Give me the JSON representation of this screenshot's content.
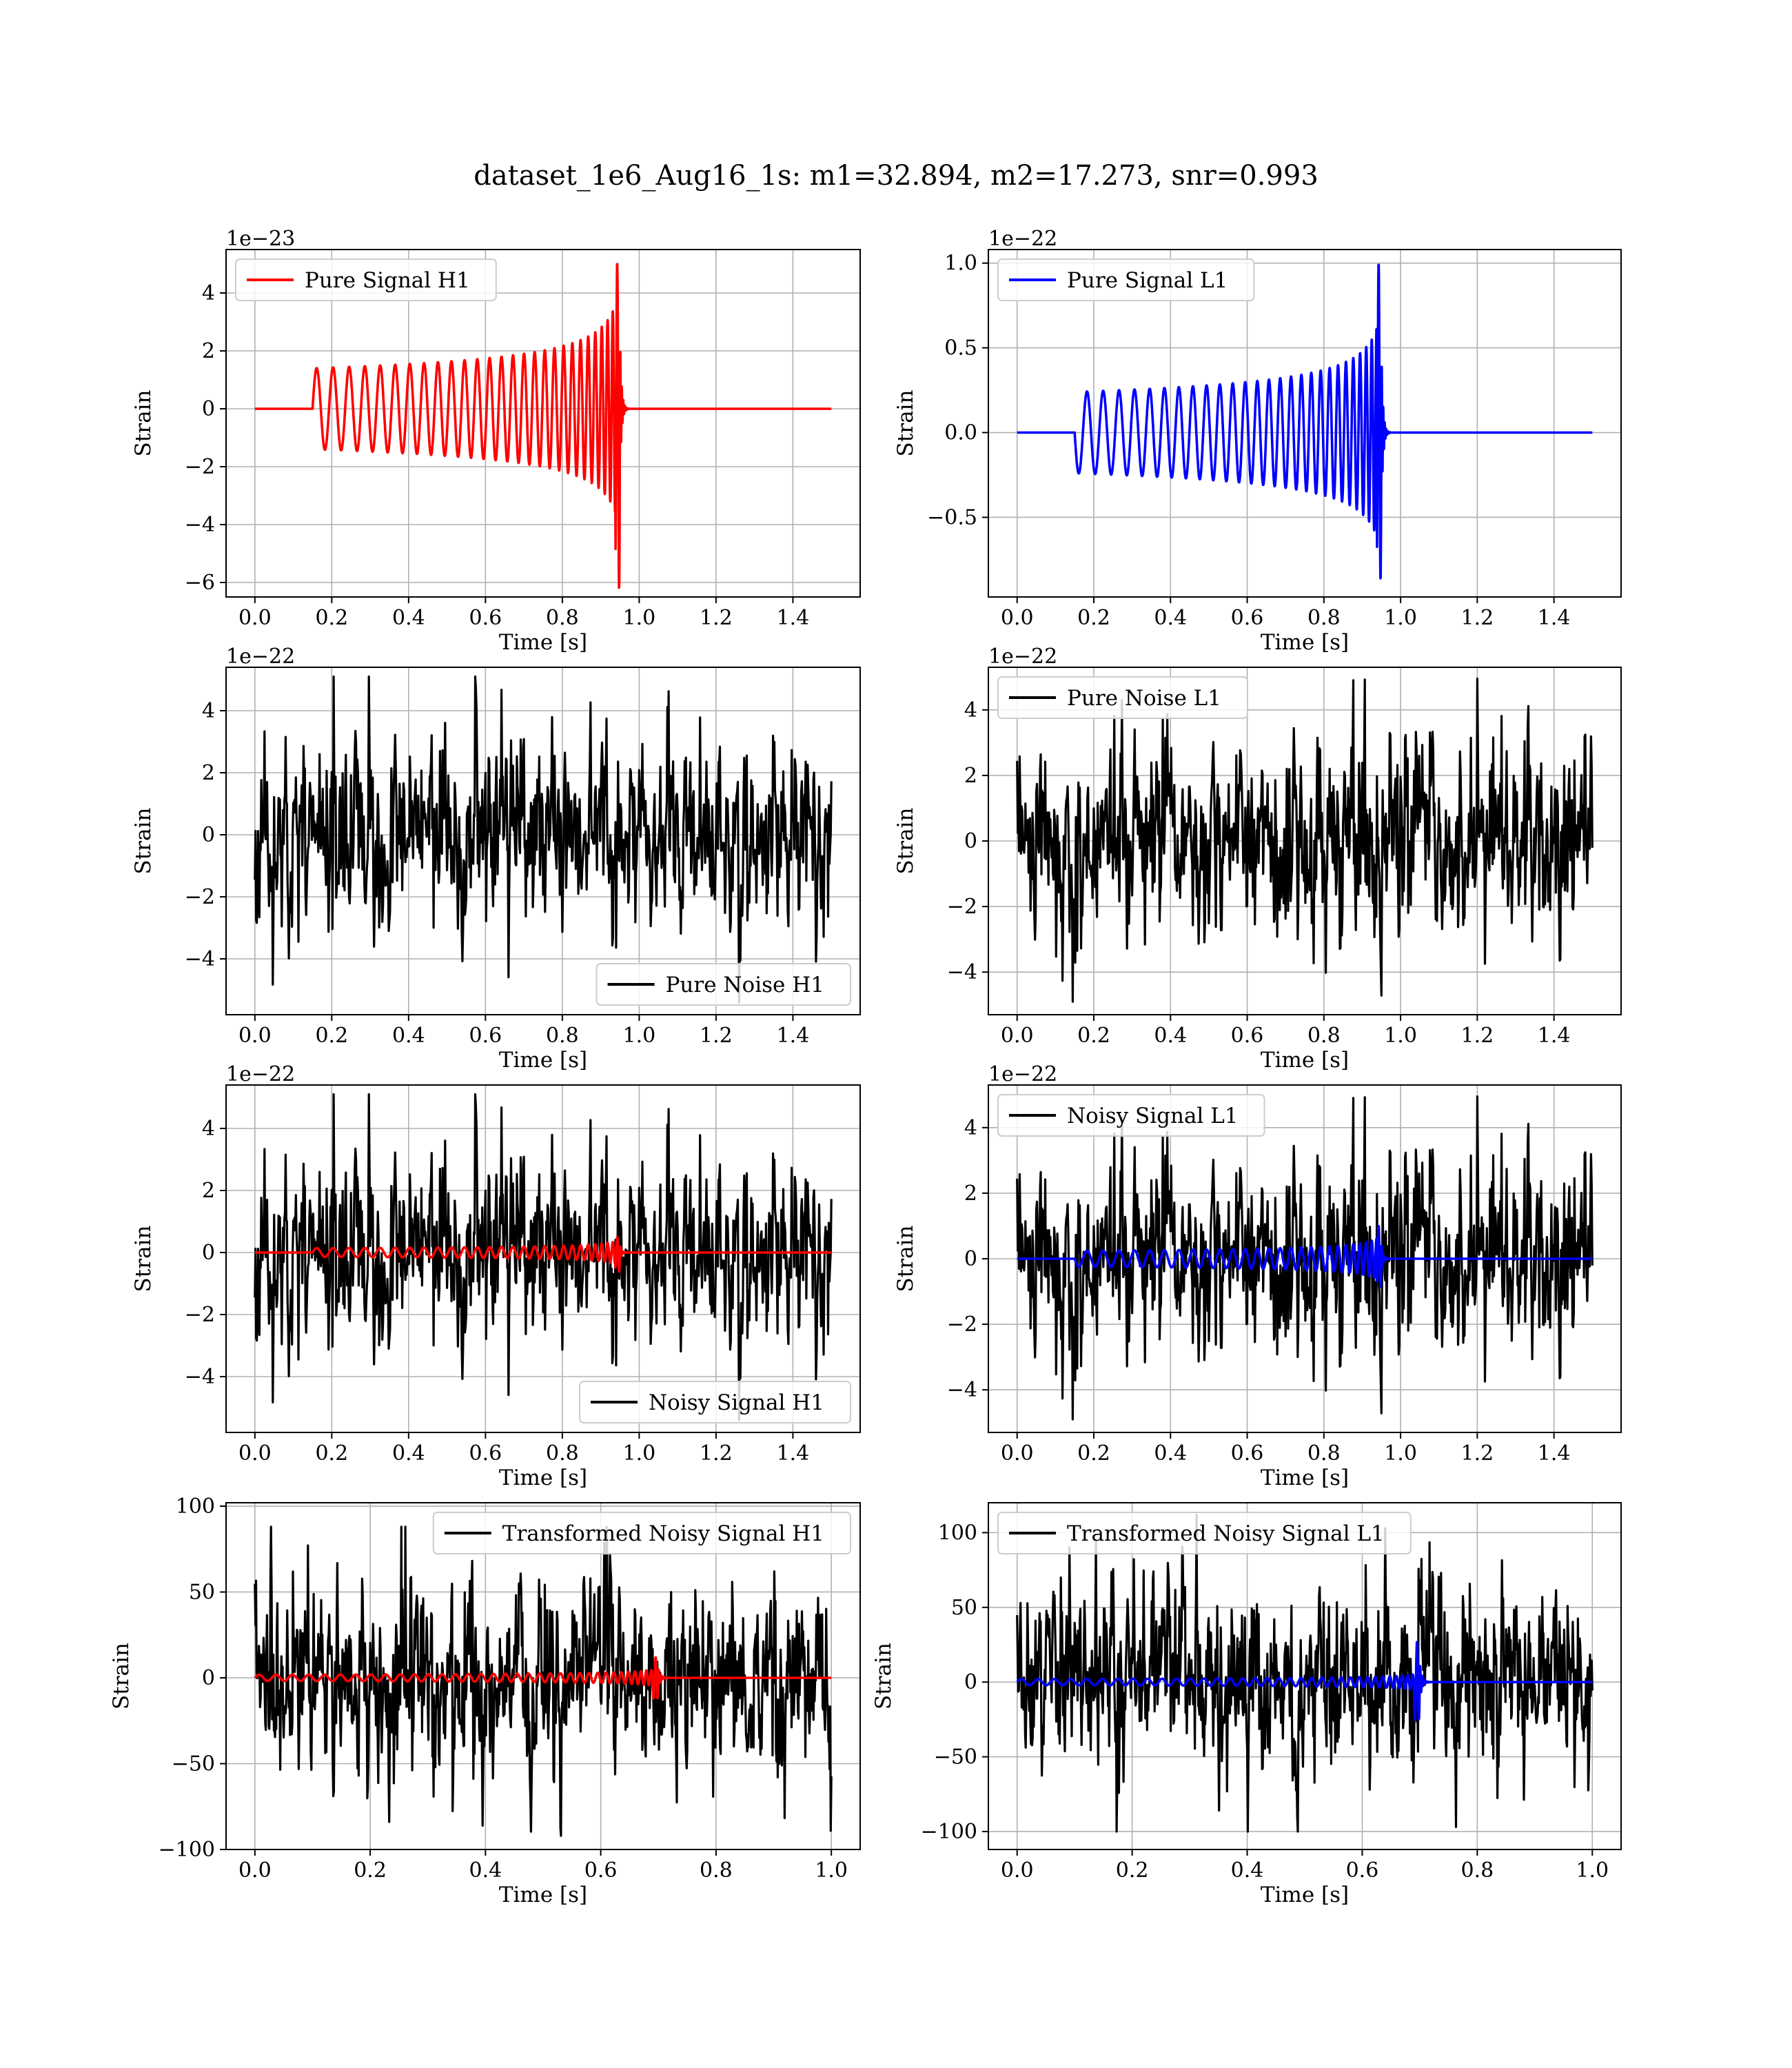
{
  "suptitle": "dataset_1e6_Aug16_1s: m1=32.894, m2=17.273, snr=0.993",
  "colors": {
    "red": "#ff0000",
    "blue": "#0000ff",
    "black": "#000000",
    "grid": "#b0b0b0"
  },
  "chart_data": [
    {
      "id": "pure-signal-h1",
      "type": "line",
      "xlabel": "Time [s]",
      "ylabel": "Strain",
      "offset_text": "1e−23",
      "xlim": [
        -0.075,
        1.575
      ],
      "ylim": [
        -6.5,
        5.5
      ],
      "xticks": [
        0.0,
        0.2,
        0.4,
        0.6,
        0.8,
        1.0,
        1.2,
        1.4
      ],
      "xtick_labels": [
        "0.0",
        "0.2",
        "0.4",
        "0.6",
        "0.8",
        "1.0",
        "1.2",
        "1.4"
      ],
      "yticks": [
        -6,
        -4,
        -2,
        0,
        2,
        4
      ],
      "ytick_labels": [
        "−6",
        "−4",
        "−2",
        "0",
        "2",
        "4"
      ],
      "grid": true,
      "legend": {
        "entries": [
          "Pure Signal H1"
        ],
        "loc": "upper left"
      },
      "series": [
        {
          "name": "Pure Signal H1",
          "kind": "chirp",
          "color": "#ff0000",
          "x_range": [
            0.0,
            1.5
          ],
          "t_start": 0.15,
          "t_merge": 0.95,
          "duration": 1.5,
          "amp_start": 1.4,
          "peak_high": 5.05,
          "peak_low": -6.25,
          "cycles": 28,
          "sign": 1
        }
      ]
    },
    {
      "id": "pure-signal-l1",
      "type": "line",
      "xlabel": "Time [s]",
      "ylabel": "Strain",
      "offset_text": "1e−22",
      "xlim": [
        -0.075,
        1.575
      ],
      "ylim": [
        -0.97,
        1.08
      ],
      "xticks": [
        0.0,
        0.2,
        0.4,
        0.6,
        0.8,
        1.0,
        1.2,
        1.4
      ],
      "xtick_labels": [
        "0.0",
        "0.2",
        "0.4",
        "0.6",
        "0.8",
        "1.0",
        "1.2",
        "1.4"
      ],
      "yticks": [
        -0.5,
        0.0,
        0.5,
        1.0
      ],
      "ytick_labels": [
        "−0.5",
        "0.0",
        "0.5",
        "1.0"
      ],
      "grid": true,
      "legend": {
        "entries": [
          "Pure Signal L1"
        ],
        "loc": "upper left"
      },
      "series": [
        {
          "name": "Pure Signal L1",
          "kind": "chirp",
          "color": "#0000ff",
          "x_range": [
            0.0,
            1.5
          ],
          "t_start": 0.15,
          "t_merge": 0.95,
          "duration": 1.5,
          "amp_start": 0.24,
          "peak_high": 1.0,
          "peak_low": -0.87,
          "cycles": 28,
          "sign": -1
        }
      ]
    },
    {
      "id": "pure-noise-h1",
      "type": "line",
      "xlabel": "Time [s]",
      "ylabel": "Strain",
      "offset_text": "1e−22",
      "xlim": [
        -0.075,
        1.575
      ],
      "ylim": [
        -5.8,
        5.4
      ],
      "xticks": [
        0.0,
        0.2,
        0.4,
        0.6,
        0.8,
        1.0,
        1.2,
        1.4
      ],
      "xtick_labels": [
        "0.0",
        "0.2",
        "0.4",
        "0.6",
        "0.8",
        "1.0",
        "1.2",
        "1.4"
      ],
      "yticks": [
        -4,
        -2,
        0,
        2,
        4
      ],
      "ytick_labels": [
        "−4",
        "−2",
        "0",
        "2",
        "4"
      ],
      "grid": true,
      "legend": {
        "entries": [
          "Pure Noise H1"
        ],
        "loc": "lower right"
      },
      "series": [
        {
          "name": "Pure Noise H1",
          "kind": "noise",
          "color": "#000000",
          "seed": 11,
          "x_range": [
            0.0,
            1.5
          ],
          "std": 1.5,
          "clip": [
            -5.4,
            5.1
          ],
          "samples": 900
        }
      ]
    },
    {
      "id": "pure-noise-l1",
      "type": "line",
      "xlabel": "Time [s]",
      "ylabel": "Strain",
      "offset_text": "1e−22",
      "xlim": [
        -0.075,
        1.575
      ],
      "ylim": [
        -5.3,
        5.3
      ],
      "xticks": [
        0.0,
        0.2,
        0.4,
        0.6,
        0.8,
        1.0,
        1.2,
        1.4
      ],
      "xtick_labels": [
        "0.0",
        "0.2",
        "0.4",
        "0.6",
        "0.8",
        "1.0",
        "1.2",
        "1.4"
      ],
      "yticks": [
        -4,
        -2,
        0,
        2,
        4
      ],
      "ytick_labels": [
        "−4",
        "−2",
        "0",
        "2",
        "4"
      ],
      "grid": true,
      "legend": {
        "entries": [
          "Pure Noise L1"
        ],
        "loc": "upper left"
      },
      "series": [
        {
          "name": "Pure Noise L1",
          "kind": "noise",
          "color": "#000000",
          "seed": 23,
          "x_range": [
            0.0,
            1.5
          ],
          "std": 1.45,
          "clip": [
            -4.9,
            4.95
          ],
          "samples": 900
        }
      ]
    },
    {
      "id": "noisy-signal-h1",
      "type": "line",
      "xlabel": "Time [s]",
      "ylabel": "Strain",
      "offset_text": "1e−22",
      "xlim": [
        -0.075,
        1.575
      ],
      "ylim": [
        -5.8,
        5.4
      ],
      "xticks": [
        0.0,
        0.2,
        0.4,
        0.6,
        0.8,
        1.0,
        1.2,
        1.4
      ],
      "xtick_labels": [
        "0.0",
        "0.2",
        "0.4",
        "0.6",
        "0.8",
        "1.0",
        "1.2",
        "1.4"
      ],
      "yticks": [
        -4,
        -2,
        0,
        2,
        4
      ],
      "ytick_labels": [
        "−4",
        "−2",
        "0",
        "2",
        "4"
      ],
      "grid": true,
      "legend": {
        "entries": [
          "Noisy Signal H1"
        ],
        "loc": "lower right"
      },
      "series": [
        {
          "name": "Noisy Signal H1",
          "kind": "noise",
          "color": "#000000",
          "seed": 11,
          "x_range": [
            0.0,
            1.5
          ],
          "std": 1.5,
          "clip": [
            -5.4,
            5.1
          ],
          "samples": 900
        },
        {
          "kind": "chirp",
          "color": "#ff0000",
          "x_range": [
            0.0,
            1.5
          ],
          "t_start": 0.15,
          "t_merge": 0.95,
          "duration": 1.5,
          "amp_start": 0.14,
          "peak_high": 0.5,
          "peak_low": -0.62,
          "cycles": 28,
          "sign": 1
        }
      ]
    },
    {
      "id": "noisy-signal-l1",
      "type": "line",
      "xlabel": "Time [s]",
      "ylabel": "Strain",
      "offset_text": "1e−22",
      "xlim": [
        -0.075,
        1.575
      ],
      "ylim": [
        -5.3,
        5.3
      ],
      "xticks": [
        0.0,
        0.2,
        0.4,
        0.6,
        0.8,
        1.0,
        1.2,
        1.4
      ],
      "xtick_labels": [
        "0.0",
        "0.2",
        "0.4",
        "0.6",
        "0.8",
        "1.0",
        "1.2",
        "1.4"
      ],
      "yticks": [
        -4,
        -2,
        0,
        2,
        4
      ],
      "ytick_labels": [
        "−4",
        "−2",
        "0",
        "2",
        "4"
      ],
      "grid": true,
      "legend": {
        "entries": [
          "Noisy Signal L1"
        ],
        "loc": "upper left"
      },
      "series": [
        {
          "name": "Noisy Signal L1",
          "kind": "noise",
          "color": "#000000",
          "seed": 23,
          "x_range": [
            0.0,
            1.5
          ],
          "std": 1.45,
          "clip": [
            -4.9,
            4.95
          ],
          "samples": 900
        },
        {
          "kind": "chirp",
          "color": "#0000ff",
          "x_range": [
            0.0,
            1.5
          ],
          "t_start": 0.15,
          "t_merge": 0.95,
          "duration": 1.5,
          "amp_start": 0.24,
          "peak_high": 1.0,
          "peak_low": -0.87,
          "cycles": 28,
          "sign": -1
        }
      ]
    },
    {
      "id": "transformed-noisy-signal-h1",
      "type": "line",
      "xlabel": "Time [s]",
      "ylabel": "Strain",
      "offset_text": "",
      "xlim": [
        -0.05,
        1.05
      ],
      "ylim": [
        -100,
        102
      ],
      "xticks": [
        0.0,
        0.2,
        0.4,
        0.6,
        0.8,
        1.0
      ],
      "xtick_labels": [
        "0.0",
        "0.2",
        "0.4",
        "0.6",
        "0.8",
        "1.0"
      ],
      "yticks": [
        -100,
        -50,
        0,
        50,
        100
      ],
      "ytick_labels": [
        "−100",
        "−50",
        "0",
        "50",
        "100"
      ],
      "grid": true,
      "legend": {
        "entries": [
          "Transformed Noisy Signal H1"
        ],
        "loc": "upper right"
      },
      "series": [
        {
          "name": "Transformed Noisy Signal H1",
          "kind": "noise",
          "color": "#000000",
          "seed": 37,
          "x_range": [
            0.0,
            1.0
          ],
          "std": 28,
          "clip": [
            -92,
            88
          ],
          "samples": 1000
        },
        {
          "kind": "chirp",
          "color": "#ff0000",
          "x_range": [
            0.0,
            1.0
          ],
          "t_start": 0.0,
          "t_merge": 0.7,
          "duration": 1.0,
          "amp_start": 1.8,
          "peak_high": 12,
          "peak_low": -12,
          "cycles": 36,
          "sign": 1
        }
      ]
    },
    {
      "id": "transformed-noisy-signal-l1",
      "type": "line",
      "xlabel": "Time [s]",
      "ylabel": "Strain",
      "offset_text": "",
      "xlim": [
        -0.05,
        1.05
      ],
      "ylim": [
        -112,
        120
      ],
      "xticks": [
        0.0,
        0.2,
        0.4,
        0.6,
        0.8,
        1.0
      ],
      "xtick_labels": [
        "0.0",
        "0.2",
        "0.4",
        "0.6",
        "0.8",
        "1.0"
      ],
      "yticks": [
        -100,
        -50,
        0,
        50,
        100
      ],
      "ytick_labels": [
        "−100",
        "−50",
        "0",
        "50",
        "100"
      ],
      "grid": true,
      "legend": {
        "entries": [
          "Transformed Noisy Signal L1"
        ],
        "loc": "upper left"
      },
      "series": [
        {
          "name": "Transformed Noisy Signal L1",
          "kind": "noise",
          "color": "#000000",
          "seed": 51,
          "x_range": [
            0.0,
            1.0
          ],
          "std": 30,
          "clip": [
            -100,
            112
          ],
          "samples": 1000
        },
        {
          "kind": "chirp",
          "color": "#0000ff",
          "x_range": [
            0.0,
            1.0
          ],
          "t_start": 0.0,
          "t_merge": 0.7,
          "duration": 1.0,
          "amp_start": 2.0,
          "peak_high": 27,
          "peak_low": -25,
          "cycles": 36,
          "sign": 1
        }
      ]
    }
  ]
}
